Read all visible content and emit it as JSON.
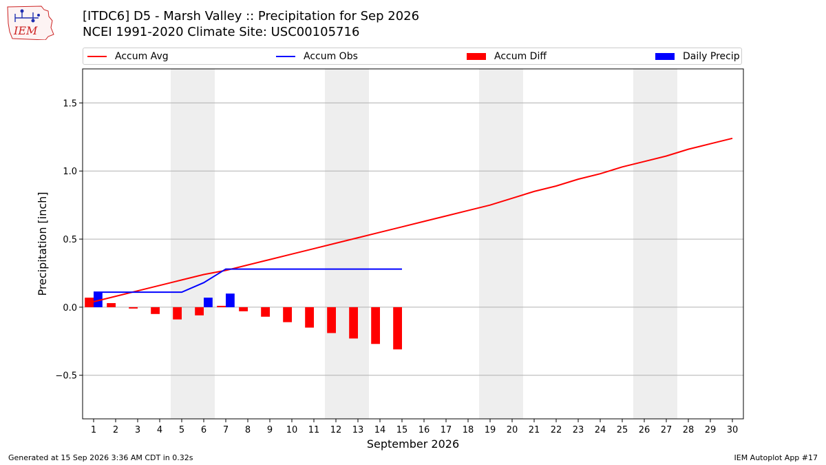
{
  "header": {
    "title_line1": "[ITDC6] D5 - Marsh Valley  :: Precipitation for Sep 2026",
    "title_line2": "NCEI 1991-2020 Climate Site: USC00105716",
    "logo_text": "IEM"
  },
  "footer": {
    "generated": "Generated at 15 Sep 2026 3:36 AM CDT in 0.32s",
    "app": "IEM Autoplot App #17"
  },
  "colors": {
    "avg": "#ff0000",
    "obs": "#0000ff",
    "diff": "#ff0000",
    "daily": "#0000ff",
    "weekend_band": "#eeeeee",
    "grid": "#b0b0b0"
  },
  "chart_data": {
    "type": "bar",
    "xlabel": "September 2026",
    "ylabel": "Precipitation [inch]",
    "ylim": [
      -0.82,
      1.75
    ],
    "xlim": [
      0.5,
      30.5
    ],
    "grid": "horizontal",
    "legend_placement": "top",
    "x": [
      1,
      2,
      3,
      4,
      5,
      6,
      7,
      8,
      9,
      10,
      11,
      12,
      13,
      14,
      15,
      16,
      17,
      18,
      19,
      20,
      21,
      22,
      23,
      24,
      25,
      26,
      27,
      28,
      29,
      30
    ],
    "yticks": [
      -0.5,
      0.0,
      0.5,
      1.0,
      1.5
    ],
    "ytick_labels": [
      "−0.5",
      "0.0",
      "0.5",
      "1.0",
      "1.5"
    ],
    "weekend_bands": [
      [
        4.5,
        6.5
      ],
      [
        11.5,
        13.5
      ],
      [
        18.5,
        20.5
      ],
      [
        25.5,
        27.5
      ]
    ],
    "legend": [
      "Accum Avg",
      "Accum Obs",
      "Accum Diff",
      "Daily Precip"
    ],
    "series": [
      {
        "name": "Accum Avg",
        "kind": "line",
        "x": [
          1,
          2,
          3,
          4,
          5,
          6,
          7,
          8,
          9,
          10,
          11,
          12,
          13,
          14,
          15,
          16,
          17,
          18,
          19,
          20,
          21,
          22,
          23,
          24,
          25,
          26,
          27,
          28,
          29,
          30
        ],
        "values": [
          0.04,
          0.08,
          0.12,
          0.16,
          0.2,
          0.24,
          0.27,
          0.31,
          0.35,
          0.39,
          0.43,
          0.47,
          0.51,
          0.55,
          0.59,
          0.63,
          0.67,
          0.71,
          0.75,
          0.8,
          0.85,
          0.89,
          0.94,
          0.98,
          1.03,
          1.07,
          1.11,
          1.16,
          1.2,
          1.24
        ]
      },
      {
        "name": "Accum Obs",
        "kind": "line",
        "x": [
          1,
          2,
          3,
          4,
          5,
          6,
          7,
          8,
          9,
          10,
          11,
          12,
          13,
          14,
          15
        ],
        "values": [
          0.11,
          0.11,
          0.11,
          0.11,
          0.11,
          0.18,
          0.28,
          0.28,
          0.28,
          0.28,
          0.28,
          0.28,
          0.28,
          0.28,
          0.28
        ]
      },
      {
        "name": "Accum Diff",
        "kind": "bar",
        "x": [
          1,
          2,
          3,
          4,
          5,
          6,
          7,
          8,
          9,
          10,
          11,
          12,
          13,
          14,
          15
        ],
        "values": [
          0.07,
          0.03,
          -0.01,
          -0.05,
          -0.09,
          -0.06,
          0.01,
          -0.03,
          -0.07,
          -0.11,
          -0.15,
          -0.19,
          -0.23,
          -0.27,
          -0.31
        ]
      },
      {
        "name": "Daily Precip",
        "kind": "bar",
        "x": [
          1,
          6,
          7
        ],
        "values": [
          0.11,
          0.07,
          0.1
        ]
      }
    ]
  }
}
